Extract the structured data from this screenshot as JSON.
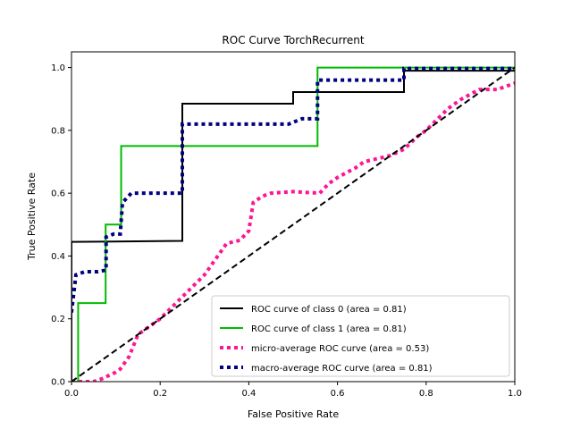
{
  "chart_data": {
    "type": "line",
    "title": "ROC Curve TorchRecurrent",
    "xlabel": "False Positive Rate",
    "ylabel": "True Positive Rate",
    "xlim": [
      0,
      1
    ],
    "ylim": [
      0,
      1.05
    ],
    "xticks": [
      0,
      0.2,
      0.4,
      0.6,
      0.8,
      1
    ],
    "xtick_labels": [
      "0.0",
      "0.2",
      "0.4",
      "0.6",
      "0.8",
      "1.0"
    ],
    "yticks": [
      0,
      0.2,
      0.4,
      0.6,
      0.8,
      1
    ],
    "ytick_labels": [
      "0.0",
      "0.2",
      "0.4",
      "0.6",
      "0.8",
      "1.0"
    ],
    "grid": false,
    "legend_position": "lower-right",
    "series": [
      {
        "name": "ROC curve of class 0 (area = 0.81)",
        "color": "#000000",
        "style": "solid",
        "x": [
          0,
          0,
          0.25,
          0.25,
          0.5,
          0.5,
          0.555,
          0.555,
          0.75,
          0.75,
          1
        ],
        "y": [
          0,
          0.445,
          0.448,
          0.885,
          0.885,
          0.922,
          0.922,
          0.922,
          0.922,
          0.99,
          0.99
        ]
      },
      {
        "name": "ROC curve of class 1 (area = 0.81)",
        "color": "#00bb00",
        "style": "solid",
        "x": [
          0,
          0.015,
          0.015,
          0.077,
          0.077,
          0.112,
          0.112,
          0.555,
          0.555,
          1
        ],
        "y": [
          0,
          0,
          0.25,
          0.25,
          0.5,
          0.5,
          0.75,
          0.75,
          1.0,
          1.0
        ]
      },
      {
        "name": "micro-average ROC curve (area = 0.53)",
        "color": "#ff1493",
        "style": "dotted",
        "x": [
          0,
          0.05,
          0.07,
          0.1,
          0.11,
          0.13,
          0.15,
          0.2,
          0.25,
          0.3,
          0.32,
          0.34,
          0.35,
          0.38,
          0.4,
          0.41,
          0.43,
          0.45,
          0.5,
          0.56,
          0.58,
          0.6,
          0.64,
          0.66,
          0.72,
          0.75,
          0.78,
          0.8,
          0.85,
          0.88,
          0.92,
          0.96,
          1.0
        ],
        "y": [
          0,
          0,
          0.01,
          0.03,
          0.04,
          0.08,
          0.15,
          0.2,
          0.27,
          0.34,
          0.38,
          0.42,
          0.44,
          0.45,
          0.48,
          0.57,
          0.59,
          0.6,
          0.605,
          0.6,
          0.63,
          0.65,
          0.68,
          0.7,
          0.72,
          0.74,
          0.78,
          0.8,
          0.87,
          0.9,
          0.93,
          0.93,
          0.95
        ]
      },
      {
        "name": "macro-average ROC curve (area = 0.81)",
        "color": "#000080",
        "style": "dotted",
        "x": [
          0,
          0.01,
          0.03,
          0.06,
          0.078,
          0.078,
          0.095,
          0.11,
          0.115,
          0.135,
          0.25,
          0.25,
          0.49,
          0.52,
          0.555,
          0.555,
          0.6,
          0.75,
          0.75,
          1.0
        ],
        "y": [
          0.22,
          0.34,
          0.35,
          0.35,
          0.355,
          0.46,
          0.47,
          0.47,
          0.57,
          0.6,
          0.6,
          0.82,
          0.82,
          0.837,
          0.837,
          0.96,
          0.96,
          0.96,
          0.997,
          0.997
        ]
      },
      {
        "name": "",
        "color": "#000000",
        "style": "dashed",
        "x": [
          0,
          1
        ],
        "y": [
          0,
          1
        ]
      }
    ]
  }
}
